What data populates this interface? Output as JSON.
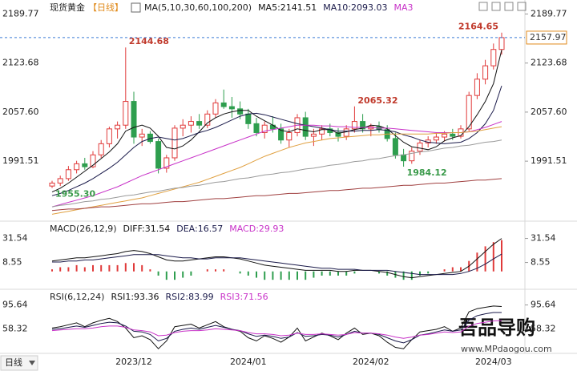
{
  "header": {
    "title": "现货黄金",
    "period": "【日线】"
  },
  "chart_data": [
    {
      "type": "candlestick",
      "indicator": "MA(5,10,30,60,100,200)",
      "categories": [
        null,
        null,
        null,
        null,
        null,
        null,
        null,
        null,
        null,
        null,
        "2023/12",
        null,
        null,
        null,
        null,
        null,
        null,
        null,
        null,
        null,
        null,
        null,
        null,
        null,
        "2024/01",
        null,
        null,
        null,
        null,
        null,
        null,
        null,
        null,
        null,
        null,
        null,
        null,
        null,
        null,
        "2024/02",
        null,
        null,
        null,
        null,
        null,
        null,
        null,
        null,
        null,
        null,
        null,
        null,
        null,
        null,
        "2024/03",
        null
      ],
      "open": [
        1958,
        1962,
        1968,
        1980,
        1988,
        1984,
        2000,
        2015,
        2035,
        2040,
        2072,
        2024,
        2028,
        2018,
        1982,
        1996,
        2036,
        2040,
        2045,
        2040,
        2055,
        2070,
        2065,
        2062,
        2055,
        2042,
        2030,
        2040,
        2035,
        2020,
        2030,
        2050,
        2025,
        2028,
        2035,
        2030,
        2025,
        2035,
        2045,
        2035,
        2038,
        2034,
        2022,
        2000,
        1992,
        2005,
        2016,
        2020,
        2024,
        2028,
        2025,
        2035,
        2080,
        2102,
        2120,
        2142
      ],
      "high": [
        1965,
        1972,
        1985,
        1992,
        1996,
        2005,
        2020,
        2038,
        2045,
        2144.68,
        2085,
        2035,
        2032,
        2022,
        2000,
        2040,
        2048,
        2052,
        2055,
        2060,
        2075,
        2088,
        2078,
        2072,
        2062,
        2050,
        2045,
        2052,
        2042,
        2035,
        2055,
        2058,
        2035,
        2040,
        2042,
        2036,
        2040,
        2065.32,
        2055,
        2042,
        2045,
        2040,
        2030,
        2008,
        2010,
        2020,
        2025,
        2030,
        2032,
        2035,
        2040,
        2085,
        2110,
        2128,
        2150,
        2164.65
      ],
      "low": [
        1955.3,
        1958,
        1965,
        1975,
        1980,
        1982,
        1996,
        2010,
        2022,
        2035,
        2015,
        2012,
        2015,
        1975,
        1976,
        1992,
        2025,
        2030,
        2035,
        2036,
        2050,
        2062,
        2050,
        2048,
        2035,
        2025,
        2022,
        2030,
        2015,
        2010,
        2025,
        2020,
        2012,
        2020,
        2025,
        2018,
        2020,
        2030,
        2030,
        2025,
        2030,
        2018,
        1995,
        1984.12,
        1988,
        2000,
        2010,
        2015,
        2018,
        2020,
        2022,
        2032,
        2075,
        2095,
        2115,
        2135
      ],
      "close": [
        1962,
        1968,
        1980,
        1988,
        1984,
        2000,
        2015,
        2035,
        2040,
        2072,
        2024,
        2028,
        2018,
        1982,
        1996,
        2036,
        2040,
        2045,
        2040,
        2055,
        2070,
        2065,
        2062,
        2055,
        2042,
        2030,
        2040,
        2035,
        2020,
        2030,
        2050,
        2025,
        2028,
        2035,
        2030,
        2025,
        2035,
        2045,
        2035,
        2038,
        2034,
        2022,
        2000,
        1992,
        2005,
        2016,
        2020,
        2024,
        2028,
        2025,
        2035,
        2080,
        2102,
        2120,
        2142,
        2157.97
      ],
      "up_color": "#e03a3a",
      "down_color": "#2e9e4e",
      "ma_lines": [
        {
          "name": "MA5:2141.51",
          "color": "#111111",
          "values": [
            1950,
            1955,
            1962,
            1970,
            1978,
            1986,
            1995,
            2004,
            2015,
            2032,
            2037,
            2040,
            2036,
            2025,
            2010,
            2008,
            2012,
            2020,
            2031,
            2043,
            2050,
            2055,
            2058,
            2060,
            2060,
            2052,
            2046,
            2040,
            2033,
            2031,
            2035,
            2033,
            2031,
            2034,
            2034,
            2029,
            2031,
            2034,
            2036,
            2040,
            2039,
            2035,
            2026,
            2017,
            2011,
            2009,
            2007,
            2011,
            2019,
            2023,
            2026,
            2038,
            2054,
            2072,
            2096,
            2141.51
          ]
        },
        {
          "name": "MA10:2093.03",
          "color": "#1a1a4a",
          "values": [
            1945,
            1948,
            1952,
            1957,
            1962,
            1968,
            1975,
            1982,
            1990,
            2000,
            2010,
            2018,
            2022,
            2024,
            2022,
            2020,
            2022,
            2026,
            2030,
            2033,
            2037,
            2042,
            2047,
            2052,
            2055,
            2056,
            2054,
            2051,
            2048,
            2045,
            2042,
            2040,
            2038,
            2036,
            2034,
            2032,
            2032,
            2032,
            2033,
            2033,
            2034,
            2033,
            2031,
            2027,
            2024,
            2020,
            2017,
            2016,
            2015,
            2016,
            2017,
            2022,
            2030,
            2042,
            2060,
            2093.03
          ]
        },
        {
          "name": "MA3",
          "color": "#c832c8",
          "values": [
            1930,
            1933,
            1936,
            1939,
            1942,
            1945,
            1949,
            1953,
            1957,
            1962,
            1967,
            1972,
            1976,
            1980,
            1984,
            1988,
            1992,
            1996,
            2000,
            2004,
            2008,
            2012,
            2016,
            2020,
            2024,
            2028,
            2032,
            2034,
            2036,
            2038,
            2040,
            2040,
            2040,
            2039,
            2039,
            2038,
            2038,
            2037,
            2037,
            2037,
            2036,
            2036,
            2035,
            2034,
            2033,
            2032,
            2031,
            2030,
            2030,
            2030,
            2030,
            2031,
            2034,
            2037,
            2041,
            2045
          ]
        },
        {
          "color": "#e0a040",
          "values": [
            1920,
            1922,
            1924,
            1926,
            1928,
            1930,
            1932,
            1934,
            1936,
            1938,
            1940,
            1942,
            1945,
            1948,
            1951,
            1954,
            1957,
            1960,
            1963,
            1967,
            1971,
            1975,
            1979,
            1983,
            1988,
            1993,
            1998,
            2002,
            2006,
            2010,
            2013,
            2016,
            2018,
            2020,
            2022,
            2023,
            2024,
            2025,
            2026,
            2027,
            2027,
            2028,
            2028,
            2028,
            2028,
            2028,
            2028,
            2029,
            2029,
            2030,
            2030,
            2031,
            2032,
            2034,
            2036,
            2038
          ]
        },
        {
          "color": "#9a9a9a",
          "values": [
            1930,
            1932,
            1933,
            1935,
            1937,
            1938,
            1940,
            1941,
            1943,
            1945,
            1946,
            1948,
            1950,
            1951,
            1953,
            1955,
            1956,
            1958,
            1959,
            1961,
            1963,
            1964,
            1966,
            1968,
            1969,
            1971,
            1973,
            1974,
            1976,
            1977,
            1979,
            1981,
            1982,
            1984,
            1986,
            1987,
            1989,
            1991,
            1992,
            1994,
            1995,
            1997,
            1999,
            2000,
            2002,
            2004,
            2005,
            2007,
            2009,
            2010,
            2012,
            2013,
            2015,
            2017,
            2018,
            2020
          ]
        },
        {
          "color": "#a04040",
          "values": [
            1925,
            1926,
            1927,
            1927,
            1928,
            1929,
            1930,
            1930,
            1931,
            1932,
            1933,
            1934,
            1934,
            1935,
            1936,
            1937,
            1937,
            1938,
            1939,
            1940,
            1941,
            1941,
            1942,
            1943,
            1944,
            1945,
            1945,
            1946,
            1947,
            1948,
            1948,
            1949,
            1950,
            1951,
            1952,
            1952,
            1953,
            1954,
            1955,
            1955,
            1956,
            1957,
            1958,
            1959,
            1959,
            1960,
            1961,
            1962,
            1962,
            1963,
            1964,
            1965,
            1966,
            1966,
            1967,
            1968
          ]
        }
      ],
      "annotations": [
        2144.68,
        {
          "value": 1955.3,
          "label": "1955.30"
        },
        2065.32,
        1984.12,
        2164.65
      ],
      "last_price": 2157.97,
      "ylim": [
        1915,
        2200
      ],
      "yticks": [
        2189.77,
        2123.68,
        {
          "value": 2057.6,
          "label": "2057.60"
        },
        1991.51
      ]
    },
    {
      "type": "macd",
      "indicator": "MACD(26,12,9)",
      "series": [
        {
          "name": "DIFF:31.54",
          "color": "#111111",
          "values": [
            10,
            11,
            12,
            13,
            13,
            14,
            15,
            16,
            17,
            19,
            20,
            19,
            17,
            14,
            11,
            10,
            10,
            11,
            12,
            13,
            14,
            14,
            13,
            12,
            10,
            8,
            6,
            5,
            4,
            3,
            2,
            1,
            1,
            1,
            1,
            0,
            0,
            1,
            1,
            1,
            0,
            -1,
            -3,
            -5,
            -6,
            -5,
            -4,
            -3,
            -2,
            -1,
            0,
            5,
            12,
            19,
            26,
            31.54
          ]
        },
        {
          "name": "DEA:16.57",
          "color": "#1a1a4a",
          "values": [
            9,
            9,
            10,
            10,
            11,
            11,
            12,
            13,
            14,
            15,
            16,
            16,
            16,
            16,
            15,
            14,
            13,
            13,
            12,
            12,
            13,
            13,
            13,
            13,
            12,
            11,
            10,
            9,
            8,
            7,
            6,
            5,
            4,
            3,
            3,
            2,
            2,
            2,
            1,
            1,
            1,
            1,
            0,
            -1,
            -2,
            -3,
            -3,
            -3,
            -3,
            -3,
            -2,
            0,
            3,
            7,
            12,
            16.57
          ]
        }
      ],
      "histogram": {
        "name": "MACD:29.93",
        "color": "#c832c8",
        "up_color": "#e03a3a",
        "down_color": "#2e9e4e",
        "values": [
          2,
          4,
          4,
          6,
          4,
          6,
          6,
          6,
          6,
          8,
          8,
          6,
          2,
          -4,
          -8,
          -8,
          -6,
          -4,
          0,
          2,
          2,
          2,
          0,
          -2,
          -4,
          -6,
          -8,
          -8,
          -8,
          -8,
          -8,
          -8,
          -6,
          -4,
          -4,
          -4,
          -4,
          -2,
          0,
          0,
          -2,
          -4,
          -6,
          -8,
          -8,
          -4,
          -2,
          0,
          2,
          4,
          4,
          10,
          18,
          24,
          28,
          29.93
        ]
      },
      "ylim": [
        -14,
        45
      ],
      "yticks": [
        31.54,
        8.55
      ]
    },
    {
      "type": "line",
      "indicator": "RSI(6,12,24)",
      "series": [
        {
          "name": "RSI1:93.36",
          "color": "#111111",
          "values": [
            60,
            62,
            65,
            68,
            62,
            68,
            72,
            75,
            70,
            60,
            45,
            48,
            42,
            28,
            40,
            62,
            64,
            66,
            60,
            65,
            70,
            62,
            58,
            55,
            45,
            40,
            48,
            44,
            38,
            46,
            60,
            40,
            46,
            52,
            48,
            42,
            52,
            60,
            50,
            52,
            48,
            38,
            30,
            28,
            42,
            54,
            56,
            58,
            62,
            55,
            60,
            85,
            90,
            92,
            94,
            93.36
          ]
        },
        {
          "name": "RSI2:83.99",
          "color": "#1a1a4a",
          "values": [
            58,
            59,
            61,
            63,
            61,
            64,
            67,
            69,
            68,
            63,
            55,
            54,
            50,
            40,
            44,
            55,
            58,
            60,
            58,
            61,
            64,
            61,
            58,
            56,
            51,
            47,
            49,
            47,
            44,
            46,
            53,
            47,
            48,
            50,
            49,
            46,
            50,
            55,
            52,
            52,
            50,
            45,
            40,
            37,
            42,
            49,
            51,
            54,
            57,
            55,
            57,
            72,
            79,
            82,
            84,
            83.99
          ]
        },
        {
          "name": "RSI3:71.56",
          "color": "#c832c8",
          "values": [
            56,
            57,
            58,
            59,
            59,
            60,
            62,
            63,
            63,
            61,
            57,
            56,
            54,
            48,
            49,
            53,
            55,
            56,
            56,
            57,
            59,
            58,
            57,
            56,
            53,
            51,
            51,
            50,
            48,
            49,
            52,
            50,
            50,
            51,
            50,
            49,
            50,
            53,
            52,
            52,
            51,
            49,
            46,
            44,
            46,
            49,
            50,
            52,
            54,
            53,
            54,
            63,
            67,
            69,
            71,
            71.56
          ]
        }
      ],
      "ylim": [
        22,
        115
      ],
      "yticks": [
        95.64,
        58.32
      ]
    }
  ],
  "footer": {
    "period_button": "日线"
  },
  "watermark": {
    "logo": "吾品导购",
    "url": "www.MPdaogou.com"
  }
}
